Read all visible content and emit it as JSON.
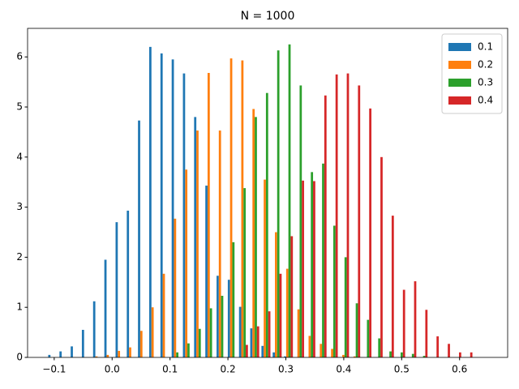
{
  "chart_data": {
    "type": "histogram",
    "title": "N = 1000",
    "bins": [
      -0.1123,
      -0.0929,
      -0.0735,
      -0.0542,
      -0.0348,
      -0.0154,
      0.004,
      0.0234,
      0.0427,
      0.0621,
      0.0815,
      0.1009,
      0.1203,
      0.1396,
      0.159,
      0.1784,
      0.1978,
      0.2172,
      0.2365,
      0.2559,
      0.2753,
      0.2947,
      0.3141,
      0.3334,
      0.3528,
      0.3722,
      0.3916,
      0.411,
      0.4303,
      0.4497,
      0.4691,
      0.4885,
      0.5079,
      0.5272,
      0.5466,
      0.566,
      0.5854,
      0.6048,
      0.6241
    ],
    "series": [
      {
        "name": "0.1",
        "color": "#1f77b4",
        "values": [
          0.05,
          0.12,
          0.22,
          0.55,
          1.12,
          1.95,
          2.7,
          2.93,
          4.73,
          6.2,
          6.07,
          5.95,
          5.67,
          4.8,
          3.43,
          1.63,
          1.55,
          1.01,
          0.58,
          0.23,
          0.1,
          0.02,
          0,
          0,
          0,
          0,
          0,
          0,
          0,
          0,
          0,
          0,
          0,
          0,
          0,
          0,
          0,
          0
        ]
      },
      {
        "name": "0.2",
        "color": "#ff7f0e",
        "values": [
          0,
          0,
          0,
          0,
          0.02,
          0.05,
          0.13,
          0.2,
          0.53,
          1.0,
          1.67,
          2.77,
          3.75,
          4.53,
          5.68,
          4.53,
          5.97,
          5.93,
          4.96,
          3.55,
          2.5,
          1.77,
          0.96,
          0.43,
          0.27,
          0.17,
          0.05,
          0.02,
          0,
          0,
          0,
          0,
          0,
          0,
          0,
          0,
          0,
          0
        ]
      },
      {
        "name": "0.3",
        "color": "#2ca02c",
        "values": [
          0,
          0,
          0,
          0,
          0,
          0,
          0,
          0,
          0,
          0,
          0,
          0.1,
          0.28,
          0.57,
          0.98,
          1.23,
          2.3,
          3.38,
          4.8,
          5.28,
          6.13,
          6.25,
          5.43,
          3.7,
          3.87,
          2.63,
          2.0,
          1.08,
          0.75,
          0.38,
          0.12,
          0.1,
          0.07,
          0.03,
          0,
          0,
          0,
          0
        ]
      },
      {
        "name": "0.4",
        "color": "#d62728",
        "values": [
          0,
          0,
          0,
          0,
          0,
          0,
          0,
          0,
          0,
          0,
          0,
          0,
          0,
          0,
          0,
          0,
          0,
          0.25,
          0.62,
          0.92,
          1.67,
          2.42,
          3.53,
          3.52,
          5.23,
          5.65,
          5.67,
          5.43,
          4.97,
          4.0,
          2.83,
          1.35,
          1.52,
          0.95,
          0.42,
          0.27,
          0.1,
          0.1
        ]
      }
    ],
    "xlim": [
      -0.146,
      0.683
    ],
    "ylim": [
      0,
      6.57
    ],
    "xticks": [
      {
        "value": -0.1,
        "label": "−0.1"
      },
      {
        "value": 0,
        "label": "0.0"
      },
      0.1,
      0.2,
      0.3,
      0.4,
      0.5,
      0.6
    ],
    "yticks": [
      0,
      1,
      2,
      3,
      4,
      5,
      6
    ],
    "legend": "upper right"
  }
}
